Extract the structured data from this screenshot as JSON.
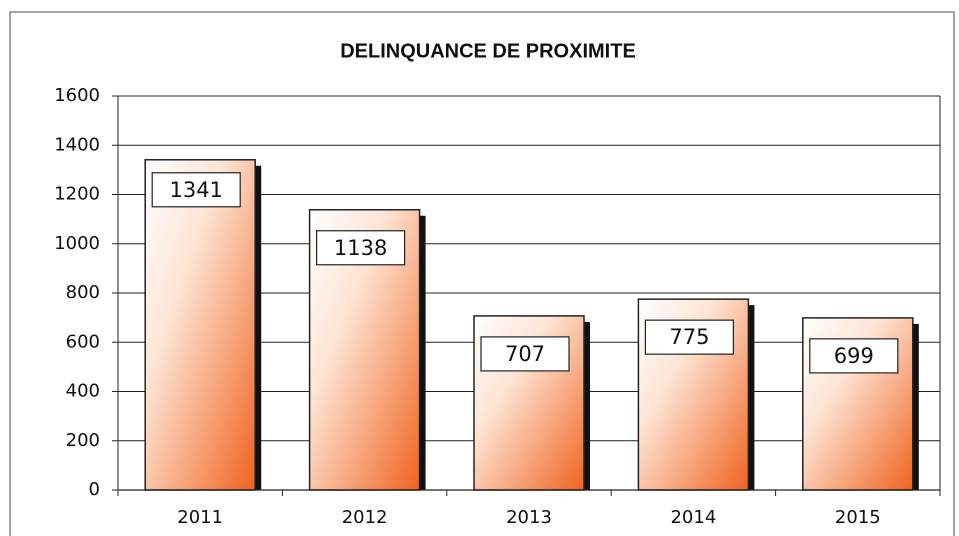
{
  "chart_data": {
    "type": "bar",
    "title": "DELINQUANCE DE PROXIMITE",
    "categories": [
      "2011",
      "2012",
      "2013",
      "2014",
      "2015"
    ],
    "values": [
      1341,
      1138,
      707,
      775,
      699
    ],
    "color": "#f06a24",
    "ylim": [
      0,
      1600
    ],
    "yticks": [
      0,
      200,
      400,
      600,
      800,
      1000,
      1200,
      1400,
      1600
    ],
    "grid": true
  }
}
